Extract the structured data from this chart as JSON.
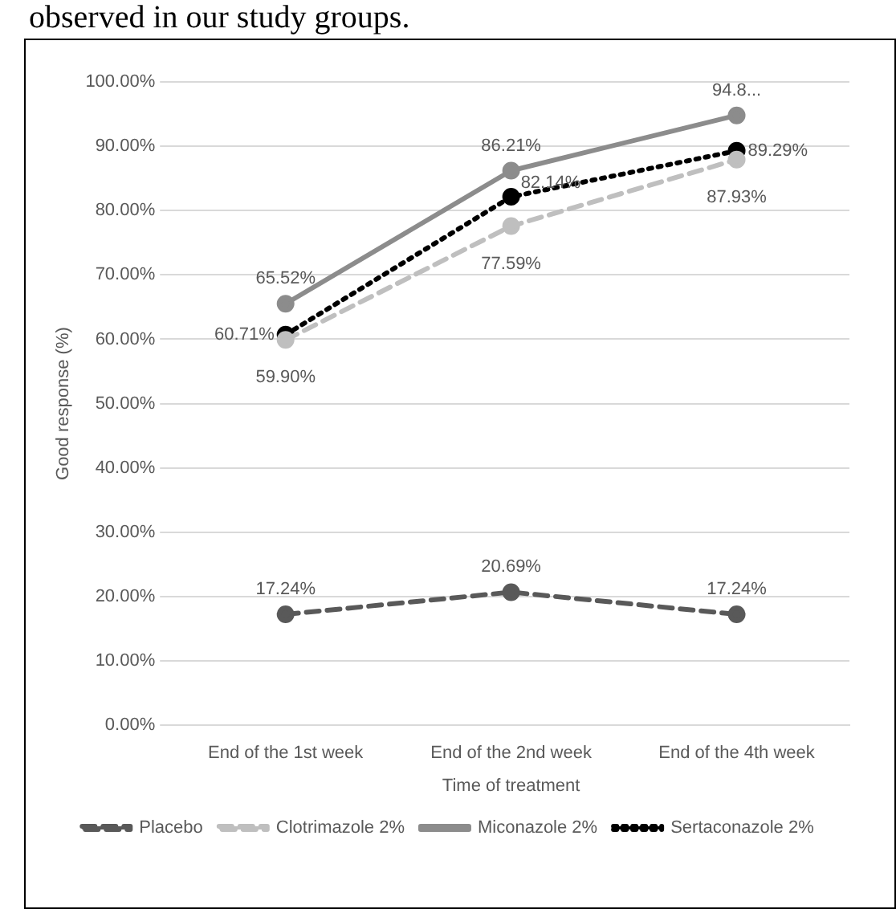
{
  "chart_data": {
    "type": "line",
    "xlabel": "Time of treatment",
    "ylabel": "Good response (%)",
    "annotations": [
      "observed in our study groups."
    ],
    "categories": [
      "End of the 1st week",
      "End of the 2nd week",
      "End of the 4th week"
    ],
    "series": [
      {
        "name": "Placebo",
        "color": "#595959",
        "line_style": "dashed",
        "values": [
          17.24,
          20.69,
          17.24
        ],
        "value_labels": [
          "17.24%",
          "20.69%",
          "17.24%"
        ]
      },
      {
        "name": "Clotrimazole 2%",
        "color": "#bfbfbf",
        "line_style": "dashed",
        "values": [
          59.9,
          77.59,
          87.93
        ],
        "value_labels": [
          "59.90%",
          "77.59%",
          "87.93%"
        ]
      },
      {
        "name": "Miconazole 2%",
        "color": "#8c8c8c",
        "line_style": "solid",
        "values": [
          65.52,
          86.21,
          94.8
        ],
        "value_labels": [
          "65.52%",
          "86.21%",
          "94.8..."
        ]
      },
      {
        "name": "Sertaconazole 2%",
        "color": "#000000",
        "line_style": "dotted",
        "values": [
          60.71,
          82.14,
          89.29
        ],
        "value_labels": [
          "60.71%",
          "82.14%",
          "89.29%"
        ]
      }
    ],
    "ylim": [
      0,
      100
    ],
    "yticks": [
      {
        "value": 0,
        "label": "0.00%"
      },
      {
        "value": 10,
        "label": "10.00%"
      },
      {
        "value": 20,
        "label": "20.00%"
      },
      {
        "value": 30,
        "label": "30.00%"
      },
      {
        "value": 40,
        "label": "40.00%"
      },
      {
        "value": 50,
        "label": "50.00%"
      },
      {
        "value": 60,
        "label": "60.00%"
      },
      {
        "value": 70,
        "label": "70.00%"
      },
      {
        "value": 80,
        "label": "80.00%"
      },
      {
        "value": 90,
        "label": "90.00%"
      },
      {
        "value": 100,
        "label": "100.00%"
      }
    ],
    "grid": "y",
    "legend": "bottom",
    "marker": "circle"
  }
}
